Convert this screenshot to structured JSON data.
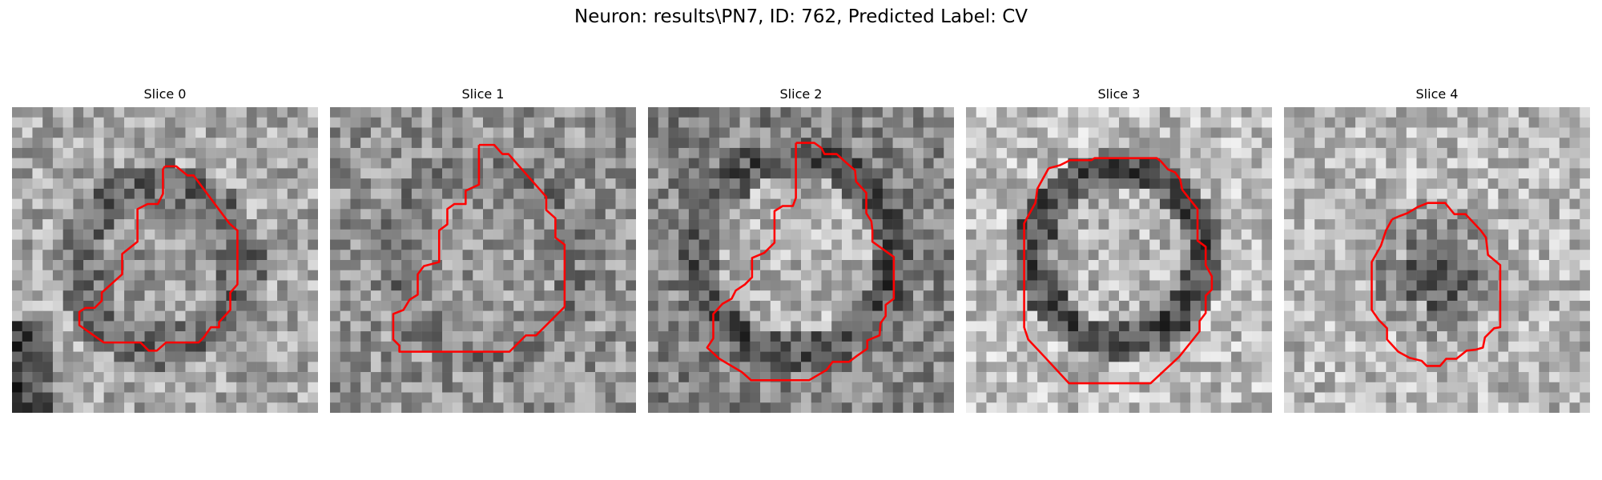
{
  "figure": {
    "title": "Neuron: results\\PN7, ID: 762, Predicted Label: CV"
  },
  "panels": [
    {
      "title": "Slice 0",
      "contour_color": "#ff0000"
    },
    {
      "title": "Slice 1",
      "contour_color": "#ff0000"
    },
    {
      "title": "Slice 2",
      "contour_color": "#ff0000"
    },
    {
      "title": "Slice 3",
      "contour_color": "#ff0000"
    },
    {
      "title": "Slice 4",
      "contour_color": "#ff0000"
    }
  ]
}
